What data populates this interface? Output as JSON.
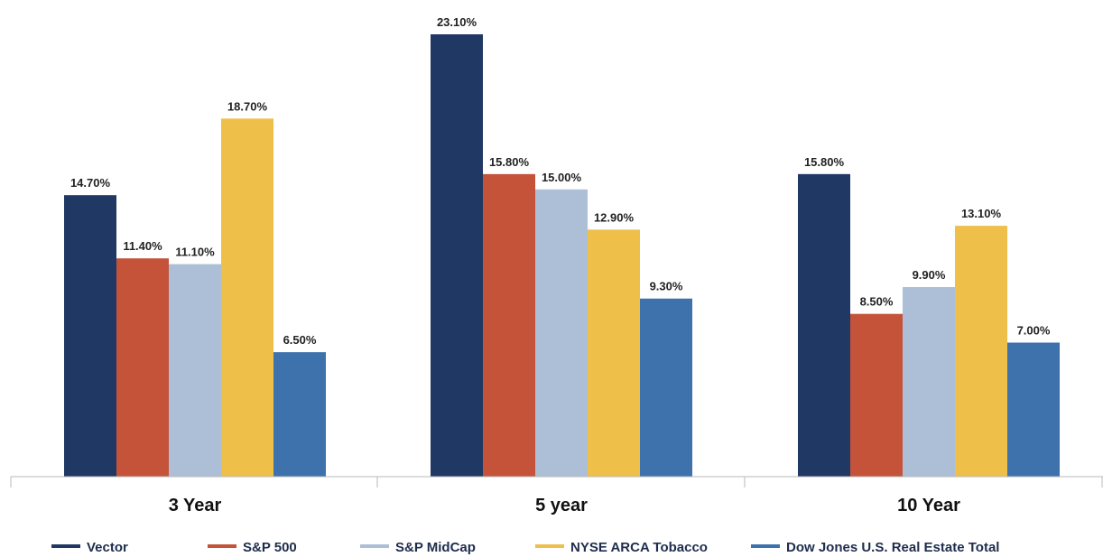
{
  "chart_data": {
    "type": "bar",
    "title": "",
    "xlabel": "",
    "ylabel": "",
    "categories": [
      "3 Year",
      "5 year",
      "10 Year"
    ],
    "ylim": [
      0,
      23.1
    ],
    "grid": false,
    "legend_position": "bottom",
    "value_format": "%",
    "series": [
      {
        "name": "Vector",
        "color": "#203864",
        "values": [
          14.7,
          23.1,
          15.8
        ],
        "labels": [
          "14.70%",
          "23.10%",
          "15.80%"
        ]
      },
      {
        "name": "S&P 500",
        "color": "#c5533a",
        "values": [
          11.4,
          15.8,
          8.5
        ],
        "labels": [
          "11.40%",
          "15.80%",
          "8.50%"
        ]
      },
      {
        "name": "S&P MidCap",
        "color": "#adbfd6",
        "values": [
          11.1,
          15.0,
          9.9
        ],
        "labels": [
          "11.10%",
          "15.00%",
          "9.90%"
        ]
      },
      {
        "name": "NYSE ARCA Tobacco",
        "color": "#eebf49",
        "values": [
          18.7,
          12.9,
          13.1
        ],
        "labels": [
          "18.70%",
          "12.90%",
          "13.10%"
        ]
      },
      {
        "name": "Dow Jones U.S. Real Estate Total",
        "color": "#3e72ac",
        "values": [
          6.5,
          9.3,
          7.0
        ],
        "labels": [
          "6.50%",
          "9.30%",
          "7.00%"
        ]
      }
    ]
  }
}
